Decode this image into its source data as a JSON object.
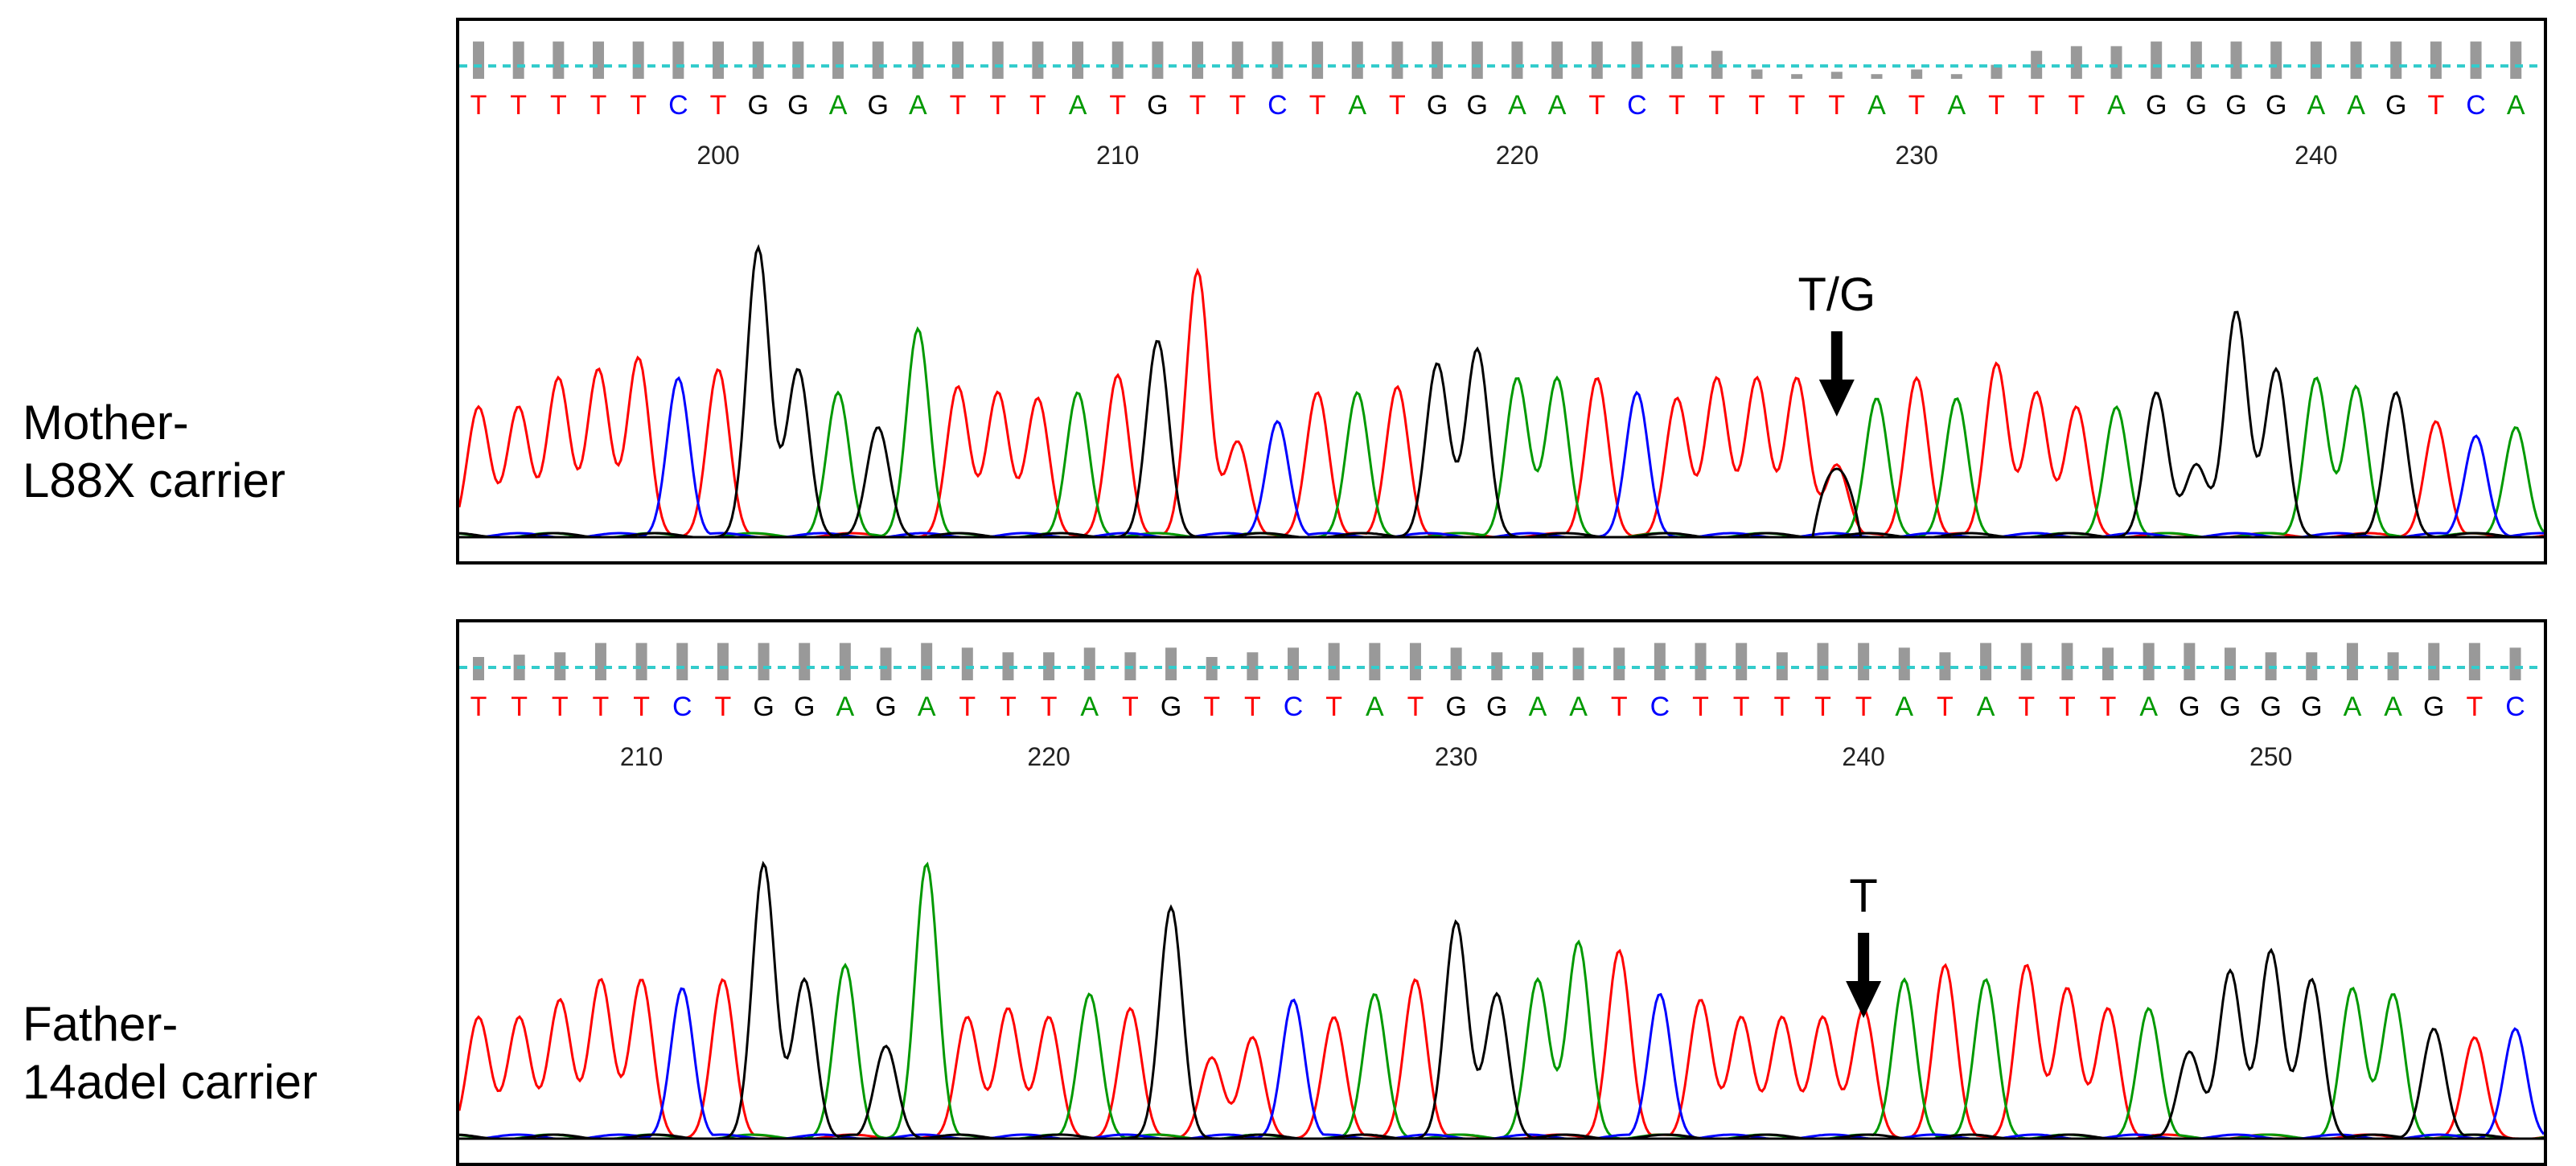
{
  "colors": {
    "T": "#ff0000",
    "C": "#0000ff",
    "G": "#000000",
    "A": "#009900",
    "quality_bar": "#999999",
    "threshold_line": "#33cccc",
    "frame": "#000000"
  },
  "panels": [
    {
      "id": "mother",
      "label_lines": [
        "Mother-",
        "L88X carrier"
      ],
      "sequence": "TTTTTCTGGAGATTTATGTTCTATGGAATCTTTTTATATTTAGGGGAAGTCA",
      "position_labels": [
        "200",
        "210",
        "220",
        "230",
        "240"
      ],
      "position_label_base_index": [
        6,
        16,
        26,
        36,
        46
      ],
      "annotation": "T/G",
      "annotation_base_index": 34,
      "quality": [
        0.8,
        0.8,
        0.8,
        0.8,
        0.8,
        0.8,
        0.8,
        0.8,
        0.8,
        0.8,
        0.8,
        0.8,
        0.8,
        0.8,
        0.8,
        0.8,
        0.8,
        0.8,
        0.8,
        0.8,
        0.8,
        0.8,
        0.8,
        0.8,
        0.8,
        0.8,
        0.8,
        0.8,
        0.8,
        0.8,
        0.7,
        0.6,
        0.2,
        0.1,
        0.15,
        0.1,
        0.2,
        0.1,
        0.3,
        0.6,
        0.7,
        0.7,
        0.8,
        0.8,
        0.8,
        0.8,
        0.8,
        0.8,
        0.8,
        0.8,
        0.8,
        0.8
      ],
      "peak_heights": [
        0.45,
        0.45,
        0.55,
        0.58,
        0.62,
        0.55,
        0.58,
        1.0,
        0.58,
        0.5,
        0.38,
        0.72,
        0.52,
        0.5,
        0.48,
        0.5,
        0.56,
        0.68,
        0.92,
        0.33,
        0.4,
        0.5,
        0.5,
        0.52,
        0.6,
        0.65,
        0.55,
        0.55,
        0.55,
        0.5,
        0.48,
        0.55,
        0.55,
        0.55,
        0.25,
        0.48,
        0.55,
        0.48,
        0.6,
        0.5,
        0.45,
        0.45,
        0.5,
        0.25,
        0.78,
        0.58,
        0.55,
        0.52,
        0.5,
        0.4,
        0.35,
        0.38
      ]
    },
    {
      "id": "father",
      "label_lines": [
        "Father-",
        "14adel carrier"
      ],
      "sequence": "TTTTTCTGGAGATTTATGTTCTATGGAATCTTTTTATATTTAGGGGAAGTC",
      "position_labels": [
        "210",
        "220",
        "230",
        "240",
        "250"
      ],
      "position_label_base_index": [
        4,
        14,
        24,
        34,
        44
      ],
      "annotation": "T",
      "annotation_base_index": 34,
      "quality": [
        0.5,
        0.55,
        0.6,
        0.8,
        0.8,
        0.8,
        0.8,
        0.8,
        0.8,
        0.8,
        0.7,
        0.8,
        0.7,
        0.6,
        0.6,
        0.7,
        0.6,
        0.7,
        0.5,
        0.6,
        0.7,
        0.8,
        0.8,
        0.8,
        0.7,
        0.6,
        0.6,
        0.7,
        0.7,
        0.8,
        0.8,
        0.8,
        0.6,
        0.8,
        0.8,
        0.7,
        0.6,
        0.8,
        0.8,
        0.8,
        0.7,
        0.8,
        0.8,
        0.7,
        0.6,
        0.6,
        0.8,
        0.6,
        0.8,
        0.8,
        0.7
      ],
      "peak_heights": [
        0.42,
        0.42,
        0.48,
        0.55,
        0.55,
        0.52,
        0.55,
        0.95,
        0.55,
        0.6,
        0.32,
        0.95,
        0.42,
        0.45,
        0.42,
        0.5,
        0.45,
        0.8,
        0.28,
        0.35,
        0.48,
        0.42,
        0.5,
        0.55,
        0.75,
        0.5,
        0.55,
        0.68,
        0.65,
        0.5,
        0.48,
        0.42,
        0.42,
        0.42,
        0.45,
        0.55,
        0.6,
        0.55,
        0.6,
        0.52,
        0.45,
        0.45,
        0.3,
        0.58,
        0.65,
        0.55,
        0.52,
        0.5,
        0.38,
        0.35,
        0.38
      ]
    }
  ]
}
